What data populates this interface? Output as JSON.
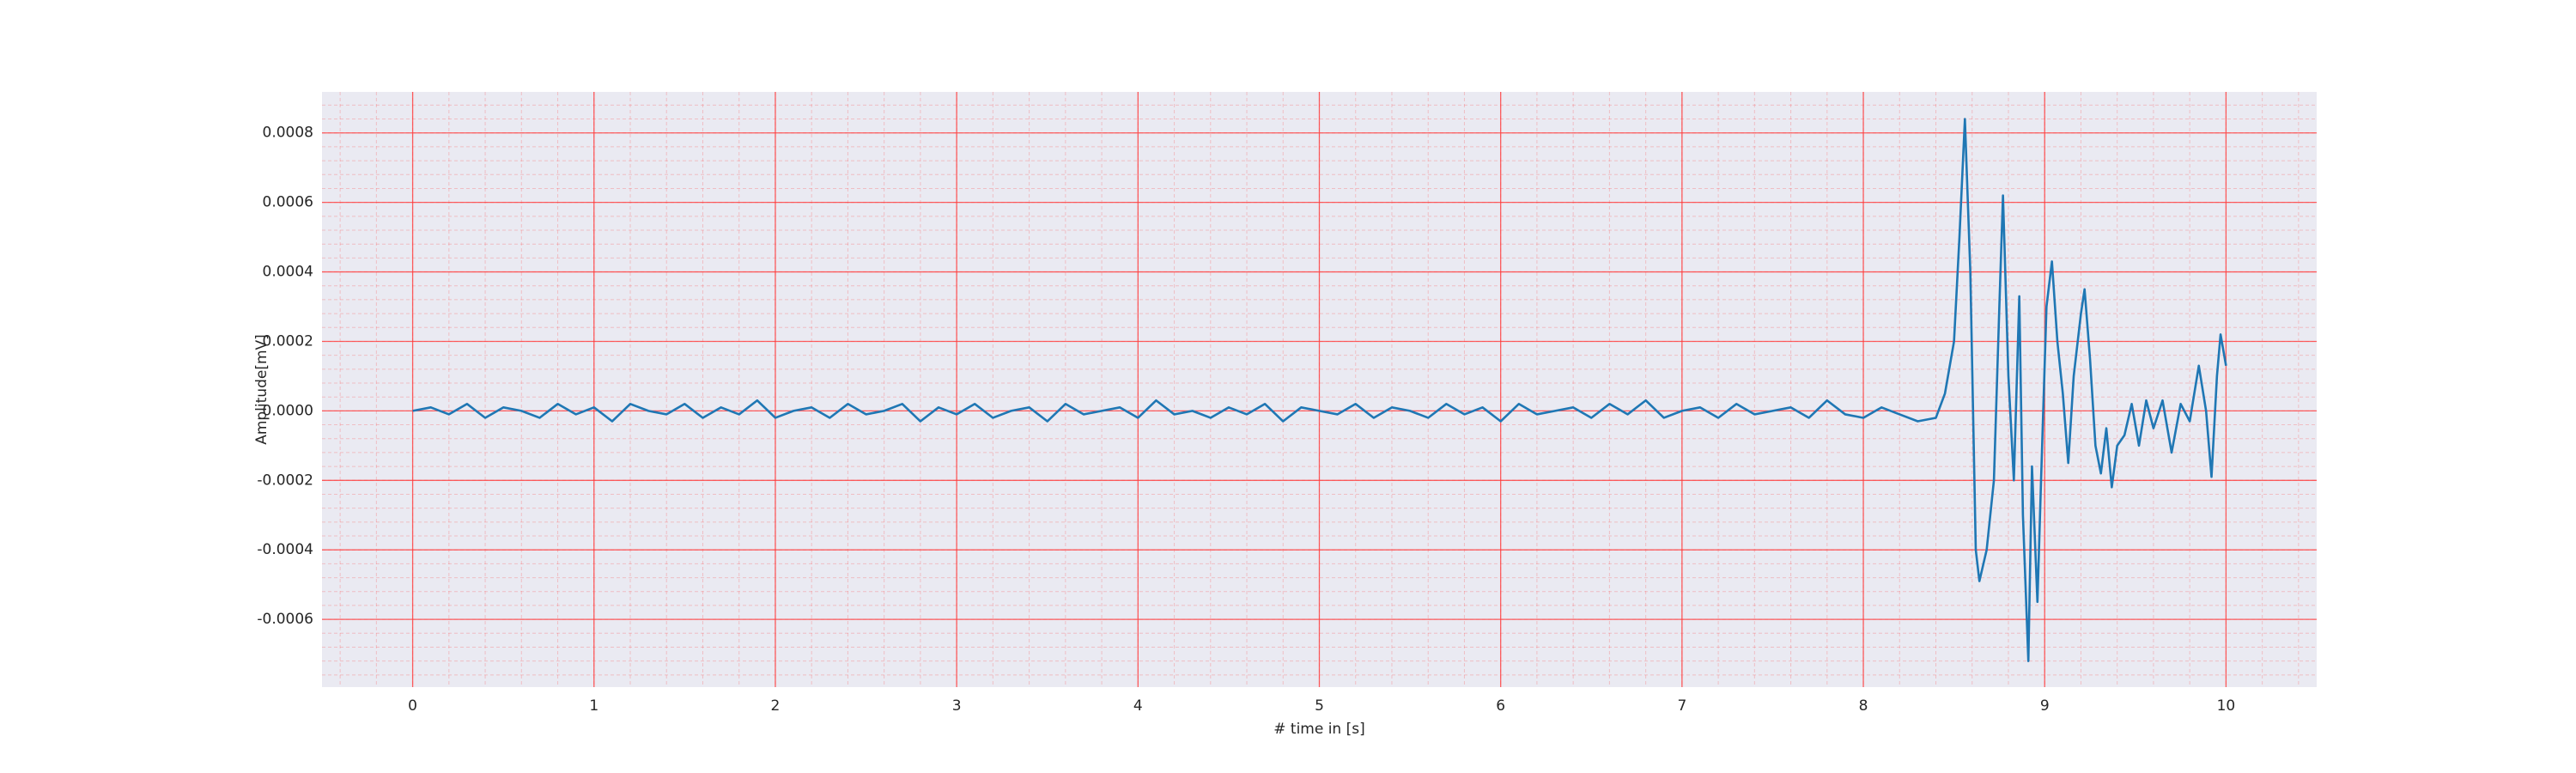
{
  "chart_data": {
    "type": "line",
    "x_label": "# time in [s]",
    "y_label": "Amplitude[mV]",
    "grid": true,
    "minor_grid": true,
    "background": "#eaeaf2",
    "grid_color": "#ff3b3b",
    "xlim": [
      -0.5,
      10.5
    ],
    "ylim": [
      -0.000795,
      0.000918
    ],
    "xticks": [
      0,
      1,
      2,
      3,
      4,
      5,
      6,
      7,
      8,
      9,
      10
    ],
    "yticks": [
      {
        "value": -0.0006,
        "label": "-0.0006"
      },
      {
        "value": -0.0004,
        "label": "-0.0004"
      },
      {
        "value": -0.0002,
        "label": "-0.0002"
      },
      {
        "value": 0,
        "label": "0.0000"
      },
      {
        "value": 0.0002,
        "label": "0.0002"
      },
      {
        "value": 0.0004,
        "label": "0.0004"
      },
      {
        "value": 0.0006,
        "label": "0.0006"
      },
      {
        "value": 0.0008,
        "label": "0.0008"
      }
    ],
    "x": [
      0,
      0.1,
      0.2,
      0.3,
      0.4,
      0.5,
      0.6,
      0.7,
      0.8,
      0.9,
      1.0,
      1.1,
      1.2,
      1.3,
      1.4,
      1.5,
      1.6,
      1.7,
      1.8,
      1.9,
      2.0,
      2.1,
      2.2,
      2.3,
      2.4,
      2.5,
      2.6,
      2.7,
      2.8,
      2.9,
      3.0,
      3.1,
      3.2,
      3.3,
      3.4,
      3.5,
      3.6,
      3.7,
      3.8,
      3.9,
      4.0,
      4.1,
      4.2,
      4.3,
      4.4,
      4.5,
      4.6,
      4.7,
      4.8,
      4.9,
      5.0,
      5.1,
      5.2,
      5.3,
      5.4,
      5.5,
      5.6,
      5.7,
      5.8,
      5.9,
      6.0,
      6.1,
      6.2,
      6.3,
      6.4,
      6.5,
      6.6,
      6.7,
      6.8,
      6.9,
      7.0,
      7.1,
      7.2,
      7.3,
      7.4,
      7.5,
      7.6,
      7.7,
      7.8,
      7.9,
      8.0,
      8.1,
      8.2,
      8.3,
      8.4,
      8.45,
      8.5,
      8.53,
      8.56,
      8.59,
      8.62,
      8.64,
      8.68,
      8.72,
      8.75,
      8.77,
      8.8,
      8.83,
      8.86,
      8.88,
      8.91,
      8.93,
      8.96,
      8.98,
      9.01,
      9.04,
      9.07,
      9.1,
      9.13,
      9.16,
      9.2,
      9.22,
      9.25,
      9.28,
      9.31,
      9.34,
      9.37,
      9.4,
      9.44,
      9.48,
      9.52,
      9.56,
      9.6,
      9.65,
      9.7,
      9.75,
      9.8,
      9.85,
      9.89,
      9.92,
      9.95,
      9.97,
      10.0
    ],
    "series": [
      {
        "color": "#1f77b4",
        "values": [
          0,
          1e-05,
          -1e-05,
          2e-05,
          -2e-05,
          1e-05,
          0,
          -2e-05,
          2e-05,
          -1e-05,
          1e-05,
          -3e-05,
          2e-05,
          0,
          -1e-05,
          2e-05,
          -2e-05,
          1e-05,
          -1e-05,
          3e-05,
          -2e-05,
          0,
          1e-05,
          -2e-05,
          2e-05,
          -1e-05,
          0,
          2e-05,
          -3e-05,
          1e-05,
          -1e-05,
          2e-05,
          -2e-05,
          0,
          1e-05,
          -3e-05,
          2e-05,
          -1e-05,
          0,
          1e-05,
          -2e-05,
          3e-05,
          -1e-05,
          0,
          -2e-05,
          1e-05,
          -1e-05,
          2e-05,
          -3e-05,
          1e-05,
          0,
          -1e-05,
          2e-05,
          -2e-05,
          1e-05,
          0,
          -2e-05,
          2e-05,
          -1e-05,
          1e-05,
          -3e-05,
          2e-05,
          -1e-05,
          0,
          1e-05,
          -2e-05,
          2e-05,
          -1e-05,
          3e-05,
          -2e-05,
          0,
          1e-05,
          -2e-05,
          2e-05,
          -1e-05,
          0,
          1e-05,
          -2e-05,
          3e-05,
          -1e-05,
          -2e-05,
          1e-05,
          -1e-05,
          -3e-05,
          -2e-05,
          5e-05,
          0.0002,
          0.0005,
          0.00084,
          0.0004,
          -0.0004,
          -0.00049,
          -0.0004,
          -0.0002,
          0.0003,
          0.00062,
          0.0001,
          -0.0002,
          0.00033,
          -0.0003,
          -0.00072,
          -0.00016,
          -0.00055,
          -0.0002,
          0.0003,
          0.00043,
          0.0002,
          5e-05,
          -0.00015,
          0.0001,
          0.00028,
          0.00035,
          0.00015,
          -0.0001,
          -0.00018,
          -5e-05,
          -0.00022,
          -0.0001,
          -7e-05,
          2e-05,
          -0.0001,
          3e-05,
          -5e-05,
          3e-05,
          -0.00012,
          2e-05,
          -3e-05,
          0.00013,
          0,
          -0.00019,
          0.0001,
          0.00022,
          0.00013
        ]
      }
    ]
  }
}
